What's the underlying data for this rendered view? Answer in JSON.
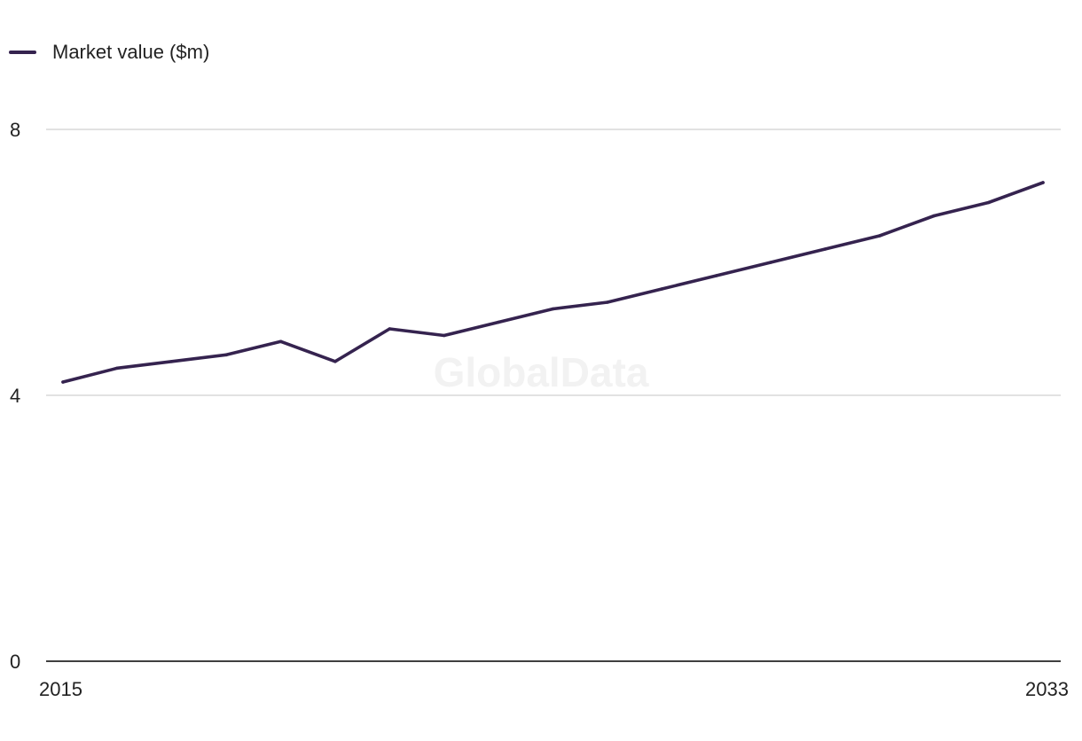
{
  "legend": {
    "label": "Market value ($m)"
  },
  "watermark": "GlobalData",
  "colors": {
    "series": "#35234f",
    "grid": "#d9d9d9",
    "axis": "#000000",
    "text": "#222222"
  },
  "chart_data": {
    "type": "line",
    "x": [
      2015,
      2016,
      2017,
      2018,
      2019,
      2020,
      2021,
      2022,
      2023,
      2024,
      2025,
      2026,
      2027,
      2028,
      2029,
      2030,
      2031,
      2032,
      2033
    ],
    "series": [
      {
        "name": "Market value ($m)",
        "values": [
          4.2,
          4.41,
          4.51,
          4.61,
          4.81,
          4.51,
          5.0,
          4.9,
          5.1,
          5.3,
          5.4,
          5.6,
          5.8,
          6.0,
          6.2,
          6.4,
          6.7,
          6.9,
          7.2
        ]
      }
    ],
    "ylim": [
      0,
      8
    ],
    "yticks": [
      0,
      4,
      8
    ],
    "xtick_labels": [
      "2015",
      "2033"
    ],
    "grid": true,
    "legend_position": "top-left",
    "title": "",
    "xlabel": "",
    "ylabel": ""
  }
}
